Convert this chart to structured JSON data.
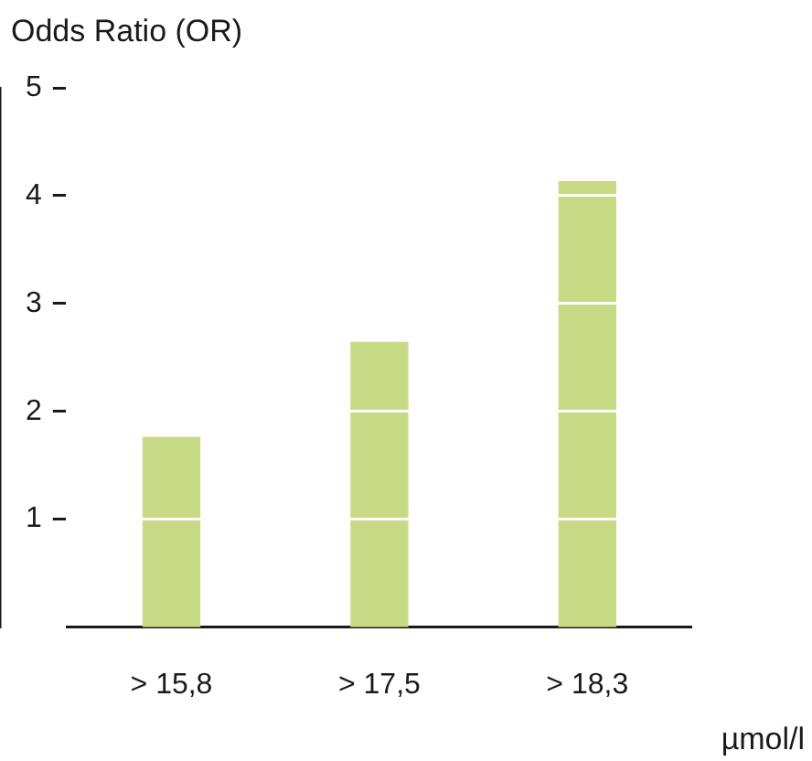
{
  "chart_data": {
    "type": "bar",
    "ylabel": "Odds Ratio (OR)",
    "xlabel": "µmol/l",
    "categories": [
      "> 15,8",
      "> 17,5",
      "> 18,3"
    ],
    "values": [
      1.76,
      2.64,
      4.13
    ],
    "color": "#c8da86",
    "ylim": [
      0,
      5
    ],
    "yticks": [
      1,
      2,
      3,
      4,
      5
    ],
    "grid": "y"
  }
}
